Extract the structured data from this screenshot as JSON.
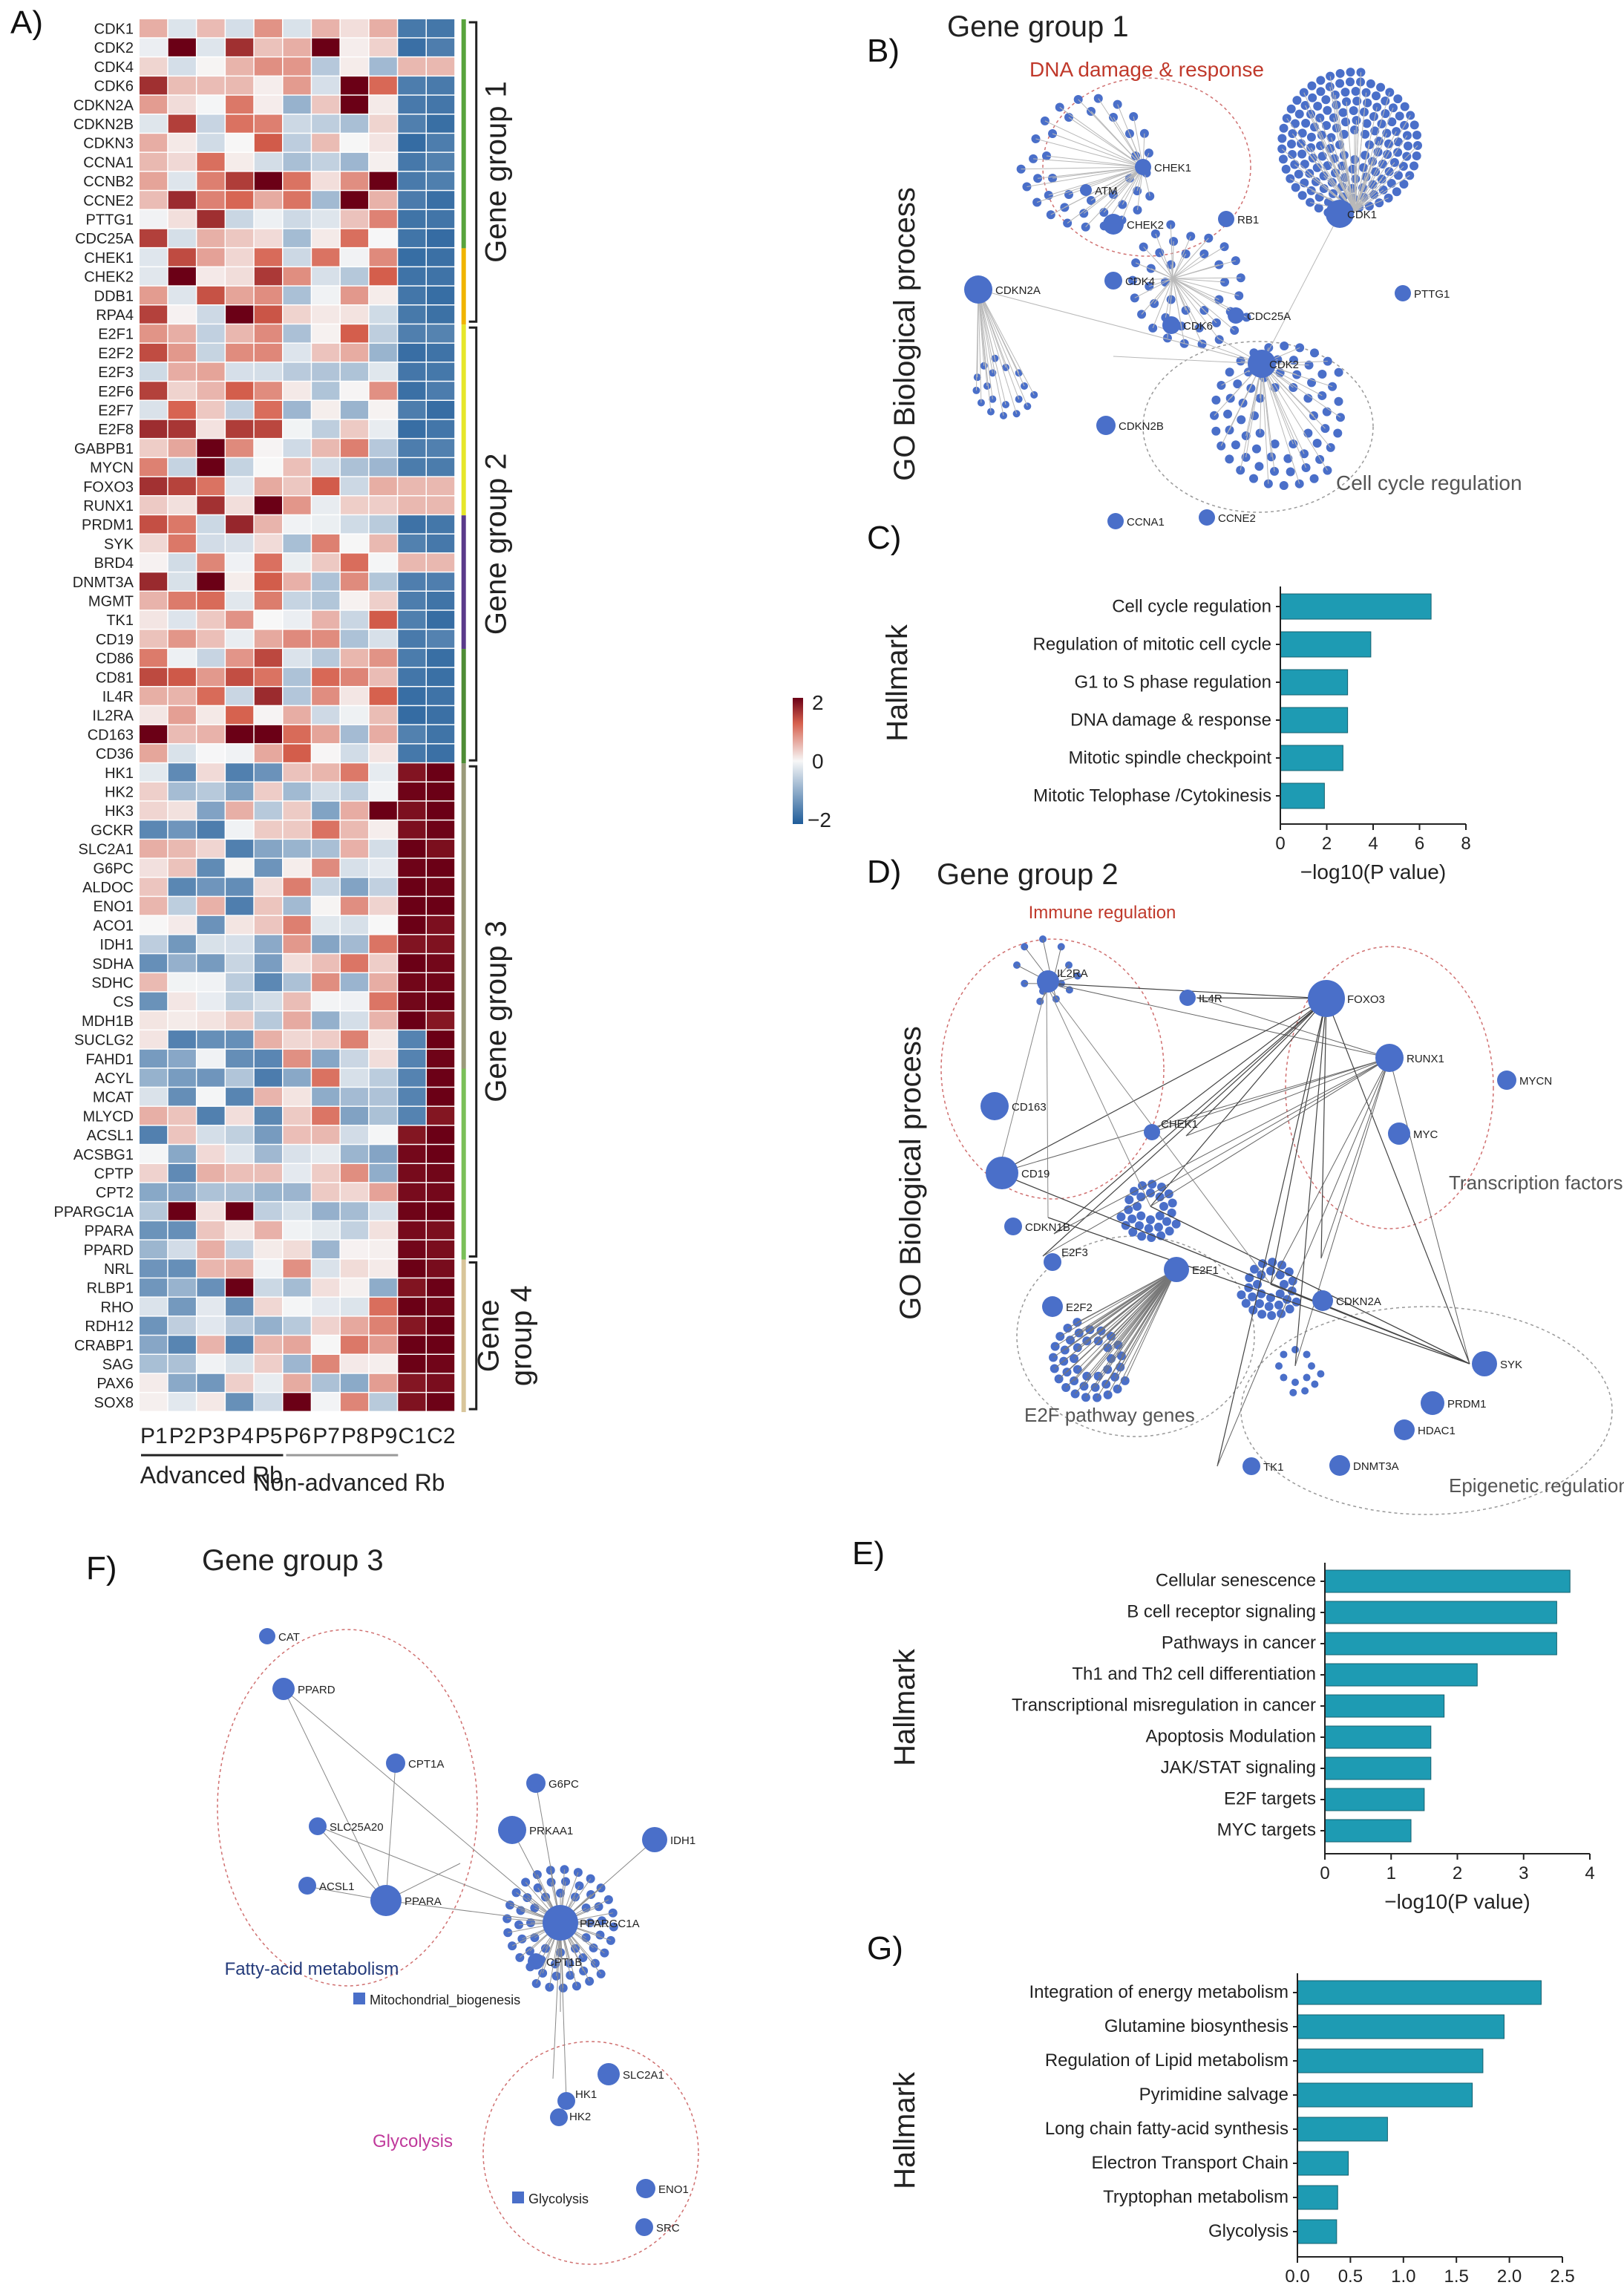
{
  "panels": {
    "a": "A)",
    "b": "B)",
    "c": "C)",
    "d": "D)",
    "e": "E)",
    "f": "F)",
    "g": "G)"
  },
  "heatmap": {
    "genes": [
      "CDK1",
      "CDK2",
      "CDK4",
      "CDK6",
      "CDKN2A",
      "CDKN2B",
      "CDKN3",
      "CCNA1",
      "CCNB2",
      "CCNE2",
      "PTTG1",
      "CDC25A",
      "CHEK1",
      "CHEK2",
      "DDB1",
      "RPA4",
      "E2F1",
      "E2F2",
      "E2F3",
      "E2F6",
      "E2F7",
      "E2F8",
      "GABPB1",
      "MYCN",
      "FOXO3",
      "RUNX1",
      "PRDM1",
      "SYK",
      "BRD4",
      "DNMT3A",
      "MGMT",
      "TK1",
      "CD19",
      "CD86",
      "CD81",
      "IL4R",
      "IL2RA",
      "CD163",
      "CD36",
      "HK1",
      "HK2",
      "HK3",
      "GCKR",
      "SLC2A1",
      "G6PC",
      "ALDOC",
      "ENO1",
      "ACO1",
      "IDH1",
      "SDHA",
      "SDHC",
      "CS",
      "MDH1B",
      "SUCLG2",
      "FAHD1",
      "ACYL",
      "MCAT",
      "MLYCD",
      "ACSL1",
      "ACSBG1",
      "CPTP",
      "CPT2",
      "PPARGC1A",
      "PPARA",
      "PPARD",
      "NRL",
      "RLBP1",
      "RHO",
      "RDH12",
      "CRABP1",
      "SAG",
      "PAX6",
      "SOX8"
    ],
    "samples": [
      "P1",
      "P2",
      "P3",
      "P4",
      "P5",
      "P6",
      "P7",
      "P8",
      "P9",
      "C1",
      "C2"
    ],
    "groups": [
      "Advanced Rb",
      "Non-advanced Rb"
    ],
    "gene_groups": [
      "Gene group 1",
      "Gene group 2",
      "Gene group 3",
      "Gene",
      "group 4"
    ],
    "scale": {
      "max": "2",
      "mid": "0",
      "min": "−2"
    },
    "colors": {
      "low": "#1f5c99",
      "mid": "#f7f7f7",
      "high": "#6b0016"
    }
  },
  "panel_b": {
    "title": "Gene group 1",
    "axis": "GO Biological process",
    "cluster_dna": "DNA damage & response",
    "cluster_cycle": "Cell cycle regulation",
    "hubs": [
      "CHEK1",
      "ATM",
      "CHEK2",
      "RB1",
      "CDK1",
      "CDKN2A",
      "CDK4",
      "CDC25A",
      "CDK6",
      "CDK2",
      "PTTG1",
      "CDKN2B",
      "CCNA1",
      "CCNE2"
    ]
  },
  "panel_d": {
    "title": "Gene group 2",
    "axis": "GO Biological process",
    "cluster_immune": "Immune regulation",
    "cluster_tf": "Transcription factors",
    "cluster_e2f": "E2F pathway genes",
    "cluster_epi": "Epigenetic regulation",
    "hubs": [
      "IL2RA",
      "IL4R",
      "FOXO3",
      "RUNX1",
      "MYCN",
      "CD163",
      "CHEK1",
      "MYC",
      "CD19",
      "CDKN1B",
      "E2F3",
      "E2F1",
      "E2F2",
      "CDKN2A",
      "SYK",
      "PRDM1",
      "HDAC1",
      "TK1",
      "DNMT3A"
    ]
  },
  "panel_f": {
    "title": "Gene group 3",
    "cluster_fa": "Fatty-acid metabolism",
    "cluster_gly": "Glycolysis",
    "hubs": [
      "CAT",
      "PPARD",
      "CPT1A",
      "SLC25A20",
      "ACSL1",
      "PPARA",
      "G6PC",
      "PRKAA1",
      "IDH1",
      "PPARGC1A",
      "CPT1B",
      "Mitochondrial_biogenesis",
      "SLC2A1",
      "HK1",
      "HK2",
      "Glycolysis",
      "ENO1",
      "SRC"
    ]
  },
  "chart_data": [
    {
      "type": "bar",
      "orientation": "horizontal",
      "panel": "C",
      "ylabel": "Hallmark",
      "xlabel": "−log10(P value)",
      "categories": [
        "Cell cycle regulation",
        "Regulation of mitotic cell cycle",
        "G1 to S phase regulation",
        "DNA damage & response",
        "Mitotic spindle checkpoint",
        "Mitotic Telophase /Cytokinesis"
      ],
      "values": [
        6.5,
        3.9,
        2.9,
        2.9,
        2.7,
        1.9
      ],
      "xlim": [
        0,
        8
      ],
      "ticks": [
        "0",
        "2",
        "4",
        "6",
        "8"
      ]
    },
    {
      "type": "bar",
      "orientation": "horizontal",
      "panel": "E",
      "ylabel": "Hallmark",
      "xlabel": "−log10(P value)",
      "categories": [
        "Cellular senescence",
        "B cell receptor signaling",
        "Pathways in cancer",
        "Th1 and Th2 cell differentiation",
        "Transcriptional misregulation in cancer",
        "Apoptosis Modulation",
        "JAK/STAT signaling",
        "E2F targets",
        "MYC targets"
      ],
      "values": [
        3.7,
        3.5,
        3.5,
        2.3,
        1.8,
        1.6,
        1.6,
        1.5,
        1.3
      ],
      "xlim": [
        0,
        4
      ],
      "ticks": [
        "0",
        "1",
        "2",
        "3",
        "4"
      ]
    },
    {
      "type": "bar",
      "orientation": "horizontal",
      "panel": "G",
      "ylabel": "Hallmark",
      "xlabel": "−log10(P value)",
      "categories": [
        "Integration of energy metabolism",
        "Glutamine biosynthesis",
        "Regulation of Lipid metabolism",
        "Pyrimidine salvage",
        "Long chain fatty-acid synthesis",
        "Electron Transport Chain",
        "Tryptophan metabolism",
        "Glycolysis"
      ],
      "values": [
        2.3,
        1.95,
        1.75,
        1.65,
        0.85,
        0.48,
        0.38,
        0.37
      ],
      "xlim": [
        0,
        2.5
      ],
      "ticks": [
        "0.0",
        "0.5",
        "1.0",
        "1.5",
        "2.0",
        "2.5"
      ]
    }
  ]
}
